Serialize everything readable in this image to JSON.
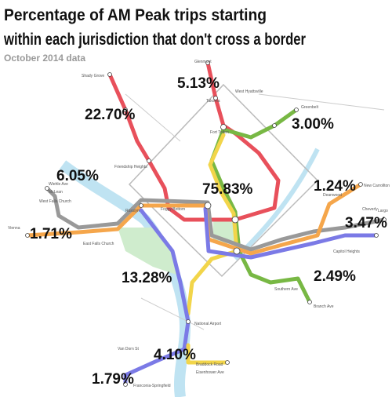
{
  "header": {
    "title_line1": "Percentage of AM Peak trips starting",
    "title_line2": "within each jurisdiction that don't cross a border",
    "subtitle": "October 2014 data"
  },
  "percentages": [
    "5.13%",
    "22.70%",
    "3.00%",
    "75.83%",
    "1.24%",
    "6.05%",
    "1.71%",
    "3.47%",
    "13.28%",
    "2.49%",
    "4.10%",
    "1.79%"
  ],
  "stations": [
    "Glenmont",
    "Shady Grove",
    "Takoma",
    "West Hyattsville",
    "Greenbelt",
    "Fort Totten",
    "Friendship Heights",
    "New Carrollton",
    "Cheverly",
    "Deanwood",
    "Capitol Heights",
    "Largo",
    "Wiehle Ave",
    "McLean",
    "West Falls Church",
    "Vienna",
    "East Falls Church",
    "Rosslyn",
    "Foggy Bottom",
    "Southern Ave",
    "Branch Ave",
    "National Airport",
    "Braddock Road",
    "Eisenhower Ave",
    "Van Dorn St",
    "Franconia-Springfield"
  ]
}
